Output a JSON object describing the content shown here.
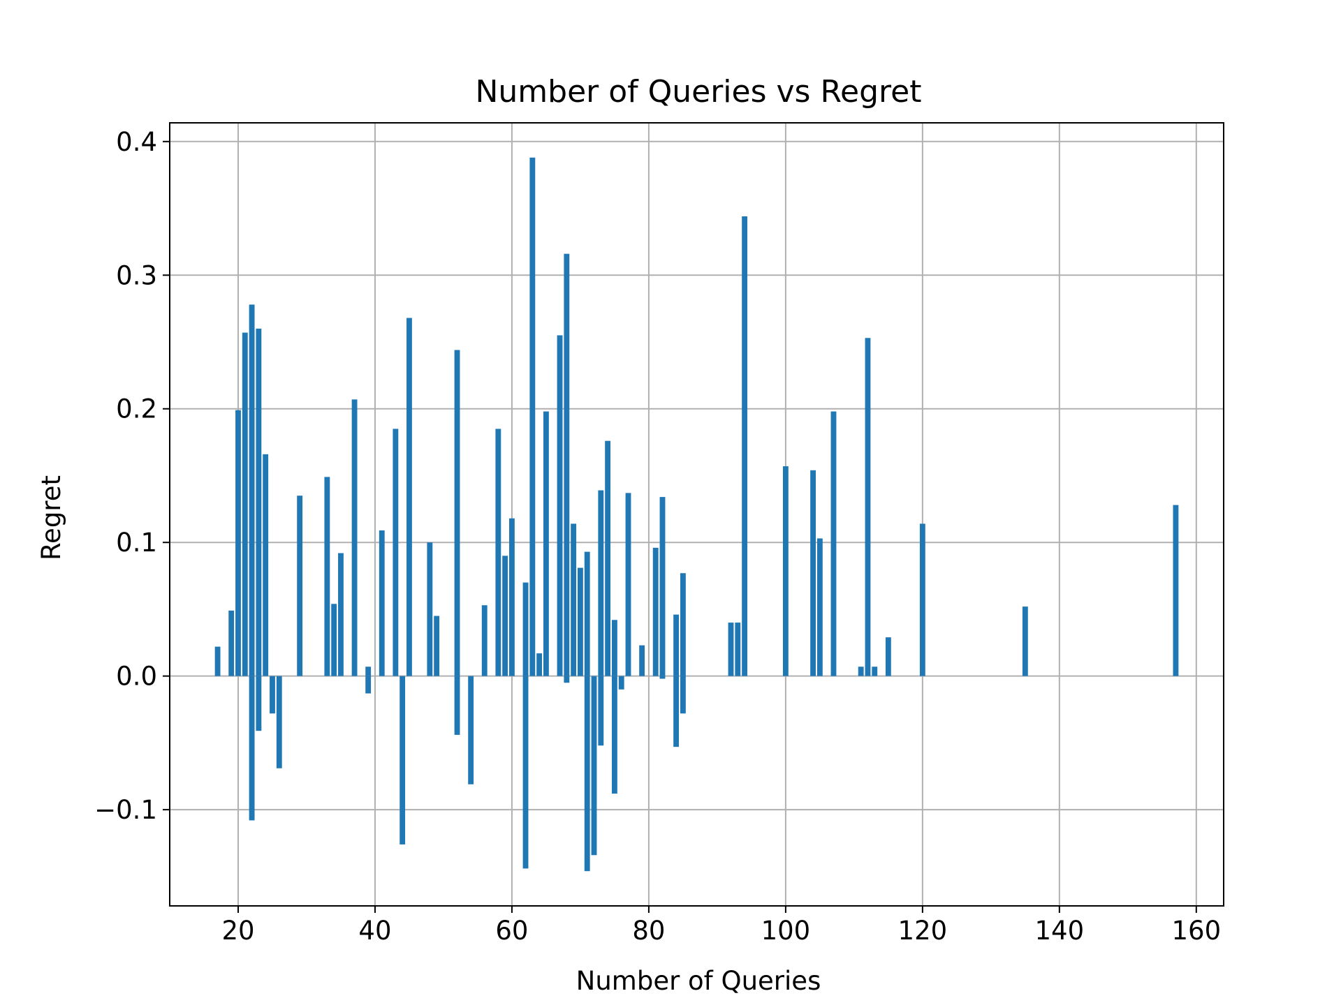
{
  "chart_data": {
    "type": "bar",
    "title": "Number of Queries vs Regret",
    "xlabel": "Number of Queries",
    "ylabel": "Regret",
    "xlim": [
      10,
      164
    ],
    "ylim": [
      -0.172,
      0.414
    ],
    "xticks": [
      20,
      40,
      60,
      80,
      100,
      120,
      140,
      160
    ],
    "yticks": [
      -0.1,
      0.0,
      0.1,
      0.2,
      0.3,
      0.4
    ],
    "ytick_labels": [
      "−0.1",
      "0.0",
      "0.1",
      "0.2",
      "0.3",
      "0.4"
    ],
    "grid": true,
    "bar_width": 0.8,
    "color": "#1f77b4",
    "bars": [
      {
        "x": 17,
        "y": 0.022
      },
      {
        "x": 19,
        "y": 0.049
      },
      {
        "x": 20,
        "y": 0.199
      },
      {
        "x": 21,
        "y": 0.257
      },
      {
        "x": 22,
        "y": 0.278
      },
      {
        "x": 22,
        "y": -0.108
      },
      {
        "x": 23,
        "y": 0.26
      },
      {
        "x": 23,
        "y": -0.041
      },
      {
        "x": 24,
        "y": 0.166
      },
      {
        "x": 25,
        "y": -0.028
      },
      {
        "x": 26,
        "y": -0.069
      },
      {
        "x": 29,
        "y": 0.135
      },
      {
        "x": 33,
        "y": 0.149
      },
      {
        "x": 34,
        "y": 0.054
      },
      {
        "x": 35,
        "y": 0.092
      },
      {
        "x": 37,
        "y": 0.207
      },
      {
        "x": 39,
        "y": 0.007
      },
      {
        "x": 39,
        "y": -0.013
      },
      {
        "x": 41,
        "y": 0.109
      },
      {
        "x": 43,
        "y": 0.185
      },
      {
        "x": 44,
        "y": -0.126
      },
      {
        "x": 45,
        "y": 0.268
      },
      {
        "x": 48,
        "y": 0.1
      },
      {
        "x": 49,
        "y": 0.045
      },
      {
        "x": 52,
        "y": 0.244
      },
      {
        "x": 52,
        "y": -0.044
      },
      {
        "x": 54,
        "y": -0.081
      },
      {
        "x": 56,
        "y": 0.053
      },
      {
        "x": 58,
        "y": 0.185
      },
      {
        "x": 59,
        "y": 0.09
      },
      {
        "x": 60,
        "y": 0.118
      },
      {
        "x": 62,
        "y": 0.07
      },
      {
        "x": 62,
        "y": -0.144
      },
      {
        "x": 63,
        "y": 0.388
      },
      {
        "x": 64,
        "y": 0.017
      },
      {
        "x": 65,
        "y": 0.198
      },
      {
        "x": 67,
        "y": 0.255
      },
      {
        "x": 68,
        "y": 0.316
      },
      {
        "x": 68,
        "y": -0.005
      },
      {
        "x": 69,
        "y": 0.114
      },
      {
        "x": 70,
        "y": 0.081
      },
      {
        "x": 71,
        "y": 0.093
      },
      {
        "x": 71,
        "y": -0.146
      },
      {
        "x": 72,
        "y": -0.134
      },
      {
        "x": 73,
        "y": 0.139
      },
      {
        "x": 73,
        "y": -0.052
      },
      {
        "x": 74,
        "y": 0.176
      },
      {
        "x": 75,
        "y": 0.042
      },
      {
        "x": 75,
        "y": -0.088
      },
      {
        "x": 76,
        "y": -0.01
      },
      {
        "x": 77,
        "y": 0.137
      },
      {
        "x": 79,
        "y": 0.023
      },
      {
        "x": 81,
        "y": 0.096
      },
      {
        "x": 82,
        "y": 0.134
      },
      {
        "x": 82,
        "y": -0.002
      },
      {
        "x": 84,
        "y": 0.046
      },
      {
        "x": 84,
        "y": -0.053
      },
      {
        "x": 85,
        "y": 0.077
      },
      {
        "x": 85,
        "y": -0.028
      },
      {
        "x": 92,
        "y": 0.04
      },
      {
        "x": 93,
        "y": 0.04
      },
      {
        "x": 94,
        "y": 0.344
      },
      {
        "x": 100,
        "y": 0.157
      },
      {
        "x": 104,
        "y": 0.154
      },
      {
        "x": 105,
        "y": 0.103
      },
      {
        "x": 107,
        "y": 0.198
      },
      {
        "x": 111,
        "y": 0.007
      },
      {
        "x": 112,
        "y": 0.253
      },
      {
        "x": 113,
        "y": 0.007
      },
      {
        "x": 115,
        "y": 0.029
      },
      {
        "x": 120,
        "y": 0.114
      },
      {
        "x": 135,
        "y": 0.052
      },
      {
        "x": 157,
        "y": 0.128
      }
    ]
  }
}
